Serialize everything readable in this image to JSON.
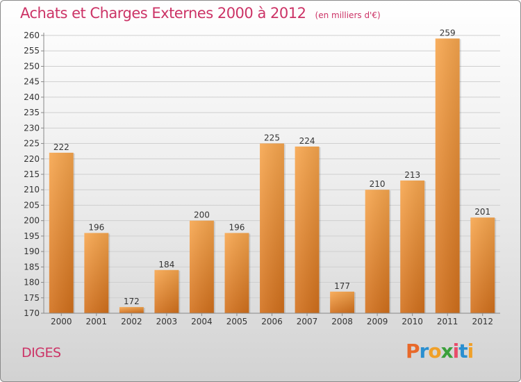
{
  "header": {
    "title": "Achats et Charges Externes 2000 à 2012",
    "unit": "(en milliers d'€)"
  },
  "footer": {
    "place": "DIGES",
    "brand": "Proxiti"
  },
  "colors": {
    "title": "#cc3366",
    "bar_top": "#f7a64e",
    "bar_bottom": "#d2701c",
    "grid": "#cfcfcf",
    "brand_letters": [
      "#e8692a",
      "#2a8fd0",
      "#f0a028",
      "#3aa03a",
      "#e84c6a",
      "#2a8fd0",
      "#f0a028"
    ]
  },
  "chart_data": {
    "type": "bar",
    "title": "Achats et Charges Externes 2000 à 2012",
    "xlabel": "",
    "ylabel": "",
    "categories": [
      "2000",
      "2001",
      "2002",
      "2003",
      "2004",
      "2005",
      "2006",
      "2007",
      "2008",
      "2009",
      "2010",
      "2011",
      "2012"
    ],
    "values": [
      222,
      196,
      172,
      184,
      200,
      196,
      225,
      224,
      177,
      210,
      213,
      259,
      201
    ],
    "ylim": [
      170,
      260
    ],
    "ytick_step": 5,
    "grid": true,
    "legend": "none"
  }
}
